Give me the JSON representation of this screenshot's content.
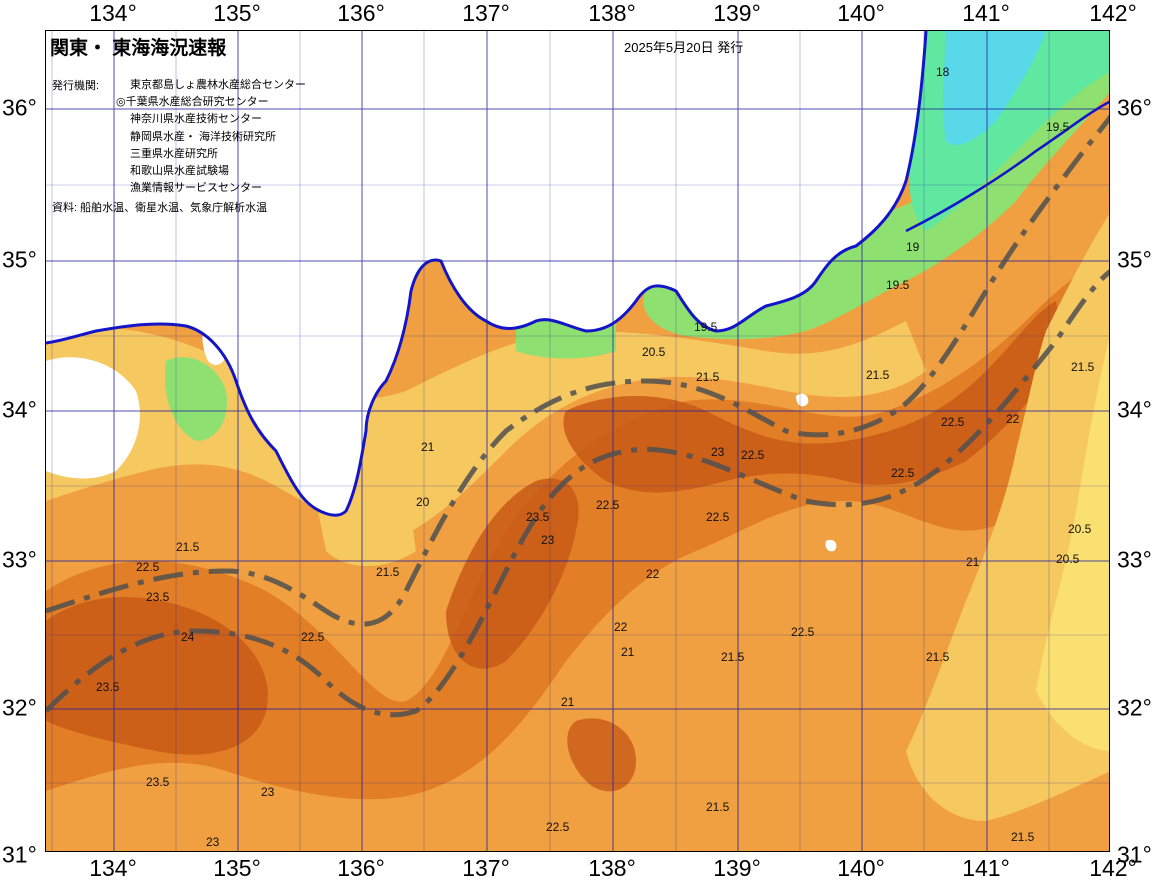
{
  "header": {
    "title": "関東・ 東海海況速報",
    "issue_date": "2025年5月20日 発行"
  },
  "issuers": {
    "label": "発行機関:",
    "organizations": [
      "東京都島しょ農林水産総合センター",
      "◎千葉県水産総合研究センター",
      "神奈川県水産技術センター",
      "静岡県水産・ 海洋技術研究所",
      "三重県水産研究所",
      "和歌山県水産試験場",
      "漁業情報サービスセンター"
    ]
  },
  "source": "資料: 船舶水温、衛星水温、気象庁解析水温",
  "axes": {
    "lon_ticks": [
      "134°",
      "135°",
      "136°",
      "137°",
      "138°",
      "139°",
      "140°",
      "141°",
      "142°"
    ],
    "lat_ticks": [
      "36°",
      "35°",
      "34°",
      "33°",
      "32°",
      "31°"
    ]
  },
  "colors": {
    "water_base": "#f0a040",
    "water_warm": "#e07a22",
    "water_hot": "#c95a18",
    "water_cool": "#f6c860",
    "water_cooler": "#fae070",
    "water_cold": "#8ee070",
    "water_colder": "#60e8a0",
    "water_coldest": "#58d8e8",
    "land": "#ffffff",
    "coast_line": "#1414c8",
    "grid": "#2020a0",
    "kuroshio_axis": "#505050"
  },
  "contour_labels": [
    "21.5",
    "22.5",
    "23.5",
    "23",
    "22",
    "21",
    "20.5",
    "19.5",
    "19",
    "18",
    "20",
    "24"
  ]
}
